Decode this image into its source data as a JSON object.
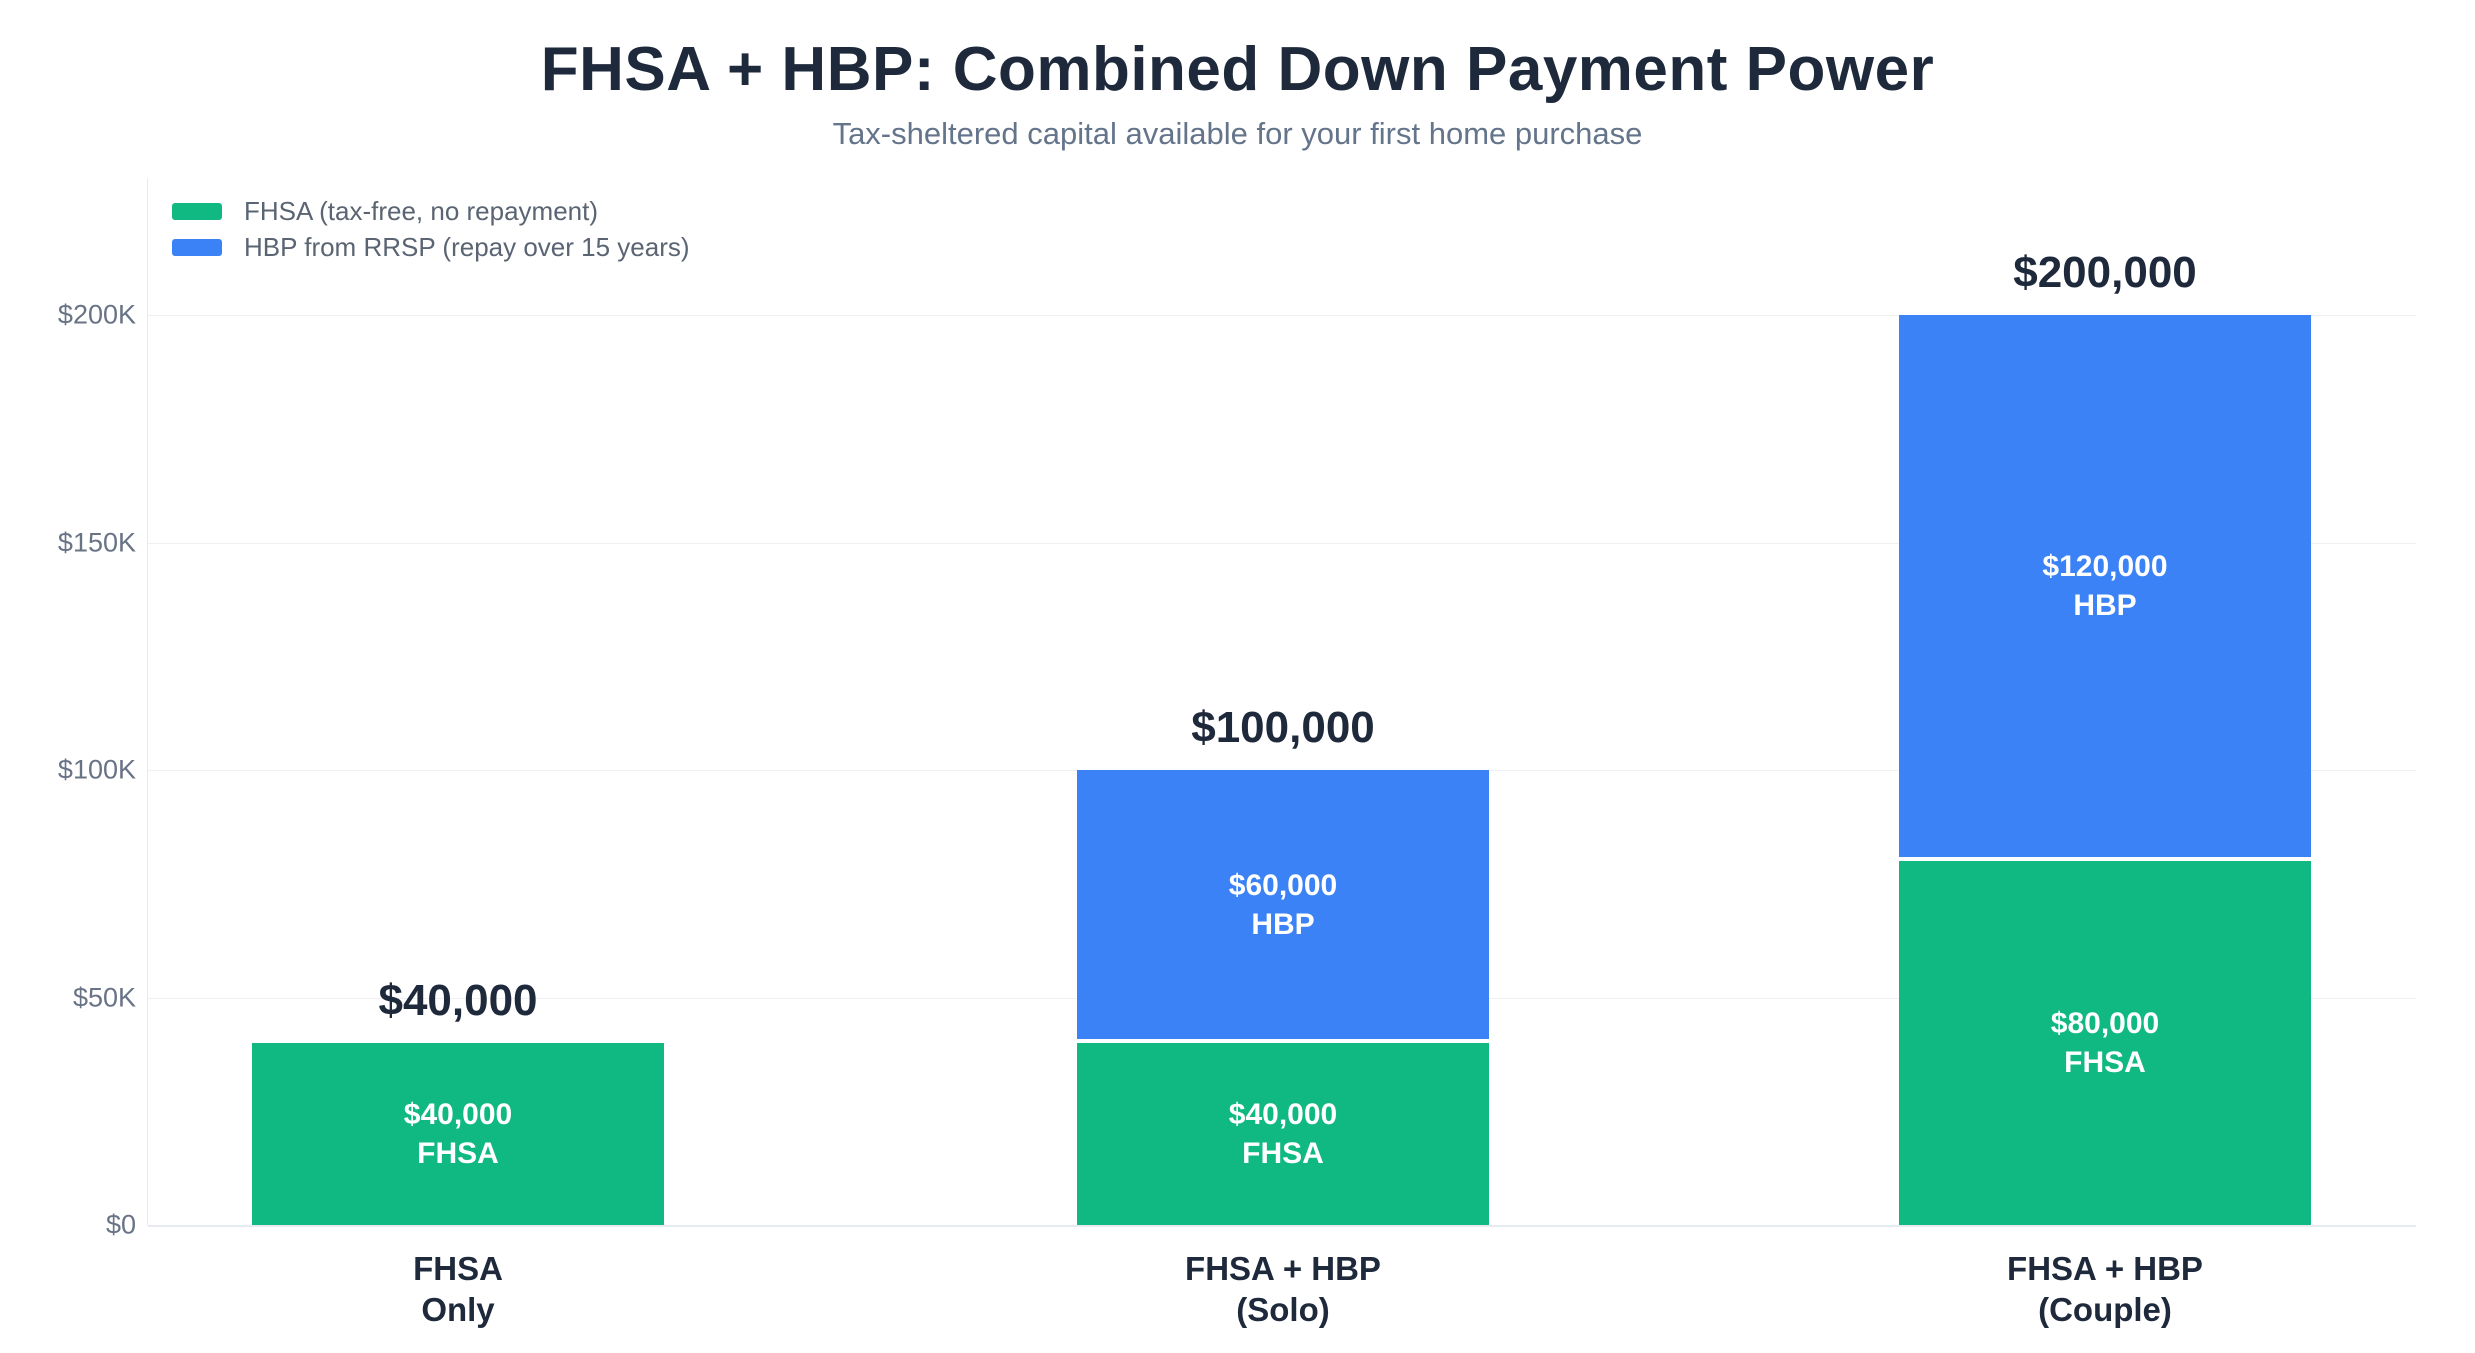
{
  "title": "FHSA + HBP: Combined Down Payment Power",
  "subtitle": "Tax-sheltered capital available for your first home purchase",
  "colors": {
    "fhsa_green": "#10b981",
    "hbp_blue": "#3b82f6",
    "heading_text": "#1e2a3b",
    "bar_value_text": "#ffffff"
  },
  "chart_data": {
    "type": "bar",
    "stacked": true,
    "title": "FHSA + HBP: Combined Down Payment Power",
    "subtitle": "Tax-sheltered capital available for your first home purchase",
    "legend_position": "top-left",
    "grid": "horizontal",
    "categories": [
      [
        "FHSA",
        "Only"
      ],
      [
        "FHSA + HBP",
        "(Solo)"
      ],
      [
        "FHSA + HBP",
        "(Couple)"
      ]
    ],
    "series": [
      {
        "name": "FHSA (tax-free, no repayment)",
        "short": "FHSA",
        "color": "#10b981",
        "values": [
          40000,
          40000,
          80000
        ],
        "segment_labels": [
          [
            "$40,000",
            "FHSA"
          ],
          [
            "$40,000",
            "FHSA"
          ],
          [
            "$80,000",
            "FHSA"
          ]
        ]
      },
      {
        "name": "HBP from RRSP (repay over 15 years)",
        "short": "HBP",
        "color": "#3b82f6",
        "values": [
          0,
          60000,
          120000
        ],
        "segment_labels": [
          null,
          [
            "$60,000",
            "HBP"
          ],
          [
            "$120,000",
            "HBP"
          ]
        ]
      }
    ],
    "totals": [
      {
        "value": 40000,
        "label": "$40,000"
      },
      {
        "value": 100000,
        "label": "$100,000"
      },
      {
        "value": 200000,
        "label": "$200,000"
      }
    ],
    "y_axis": {
      "ylim": [
        0,
        200000
      ],
      "ticks": [
        {
          "value": 0,
          "label": "$0"
        },
        {
          "value": 50000,
          "label": "$50K"
        },
        {
          "value": 100000,
          "label": "$100K"
        },
        {
          "value": 150000,
          "label": "$150K"
        },
        {
          "value": 200000,
          "label": "$200K"
        }
      ]
    }
  }
}
